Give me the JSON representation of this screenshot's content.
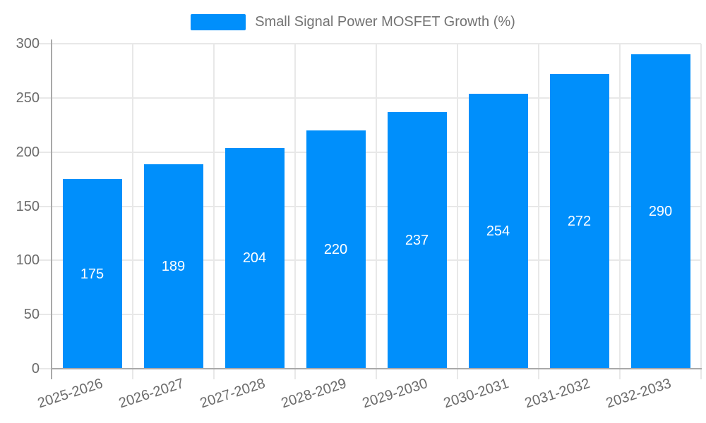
{
  "legend": {
    "label": "Small Signal Power MOSFET Growth (%)"
  },
  "chart_data": {
    "type": "bar",
    "title": "Small Signal Power MOSFET Growth (%)",
    "categories": [
      "2025-2026",
      "2026-2027",
      "2027-2028",
      "2028-2029",
      "2029-2030",
      "2030-2031",
      "2031-2032",
      "2032-2033"
    ],
    "values": [
      175,
      189,
      204,
      220,
      237,
      254,
      272,
      290
    ],
    "xlabel": "",
    "ylabel": "",
    "ylim": [
      0,
      300
    ],
    "yticks": [
      0,
      50,
      100,
      150,
      200,
      250,
      300
    ],
    "grid": true,
    "legend_position": "top",
    "data_labels": "inside-center",
    "colors": {
      "bar": "#008FFB",
      "axis_line": "#a9a9a9",
      "gridline": "#e8e8e8",
      "axis_text": "#6b6b6b",
      "data_label_text": "#ffffff",
      "background": "#ffffff"
    }
  }
}
